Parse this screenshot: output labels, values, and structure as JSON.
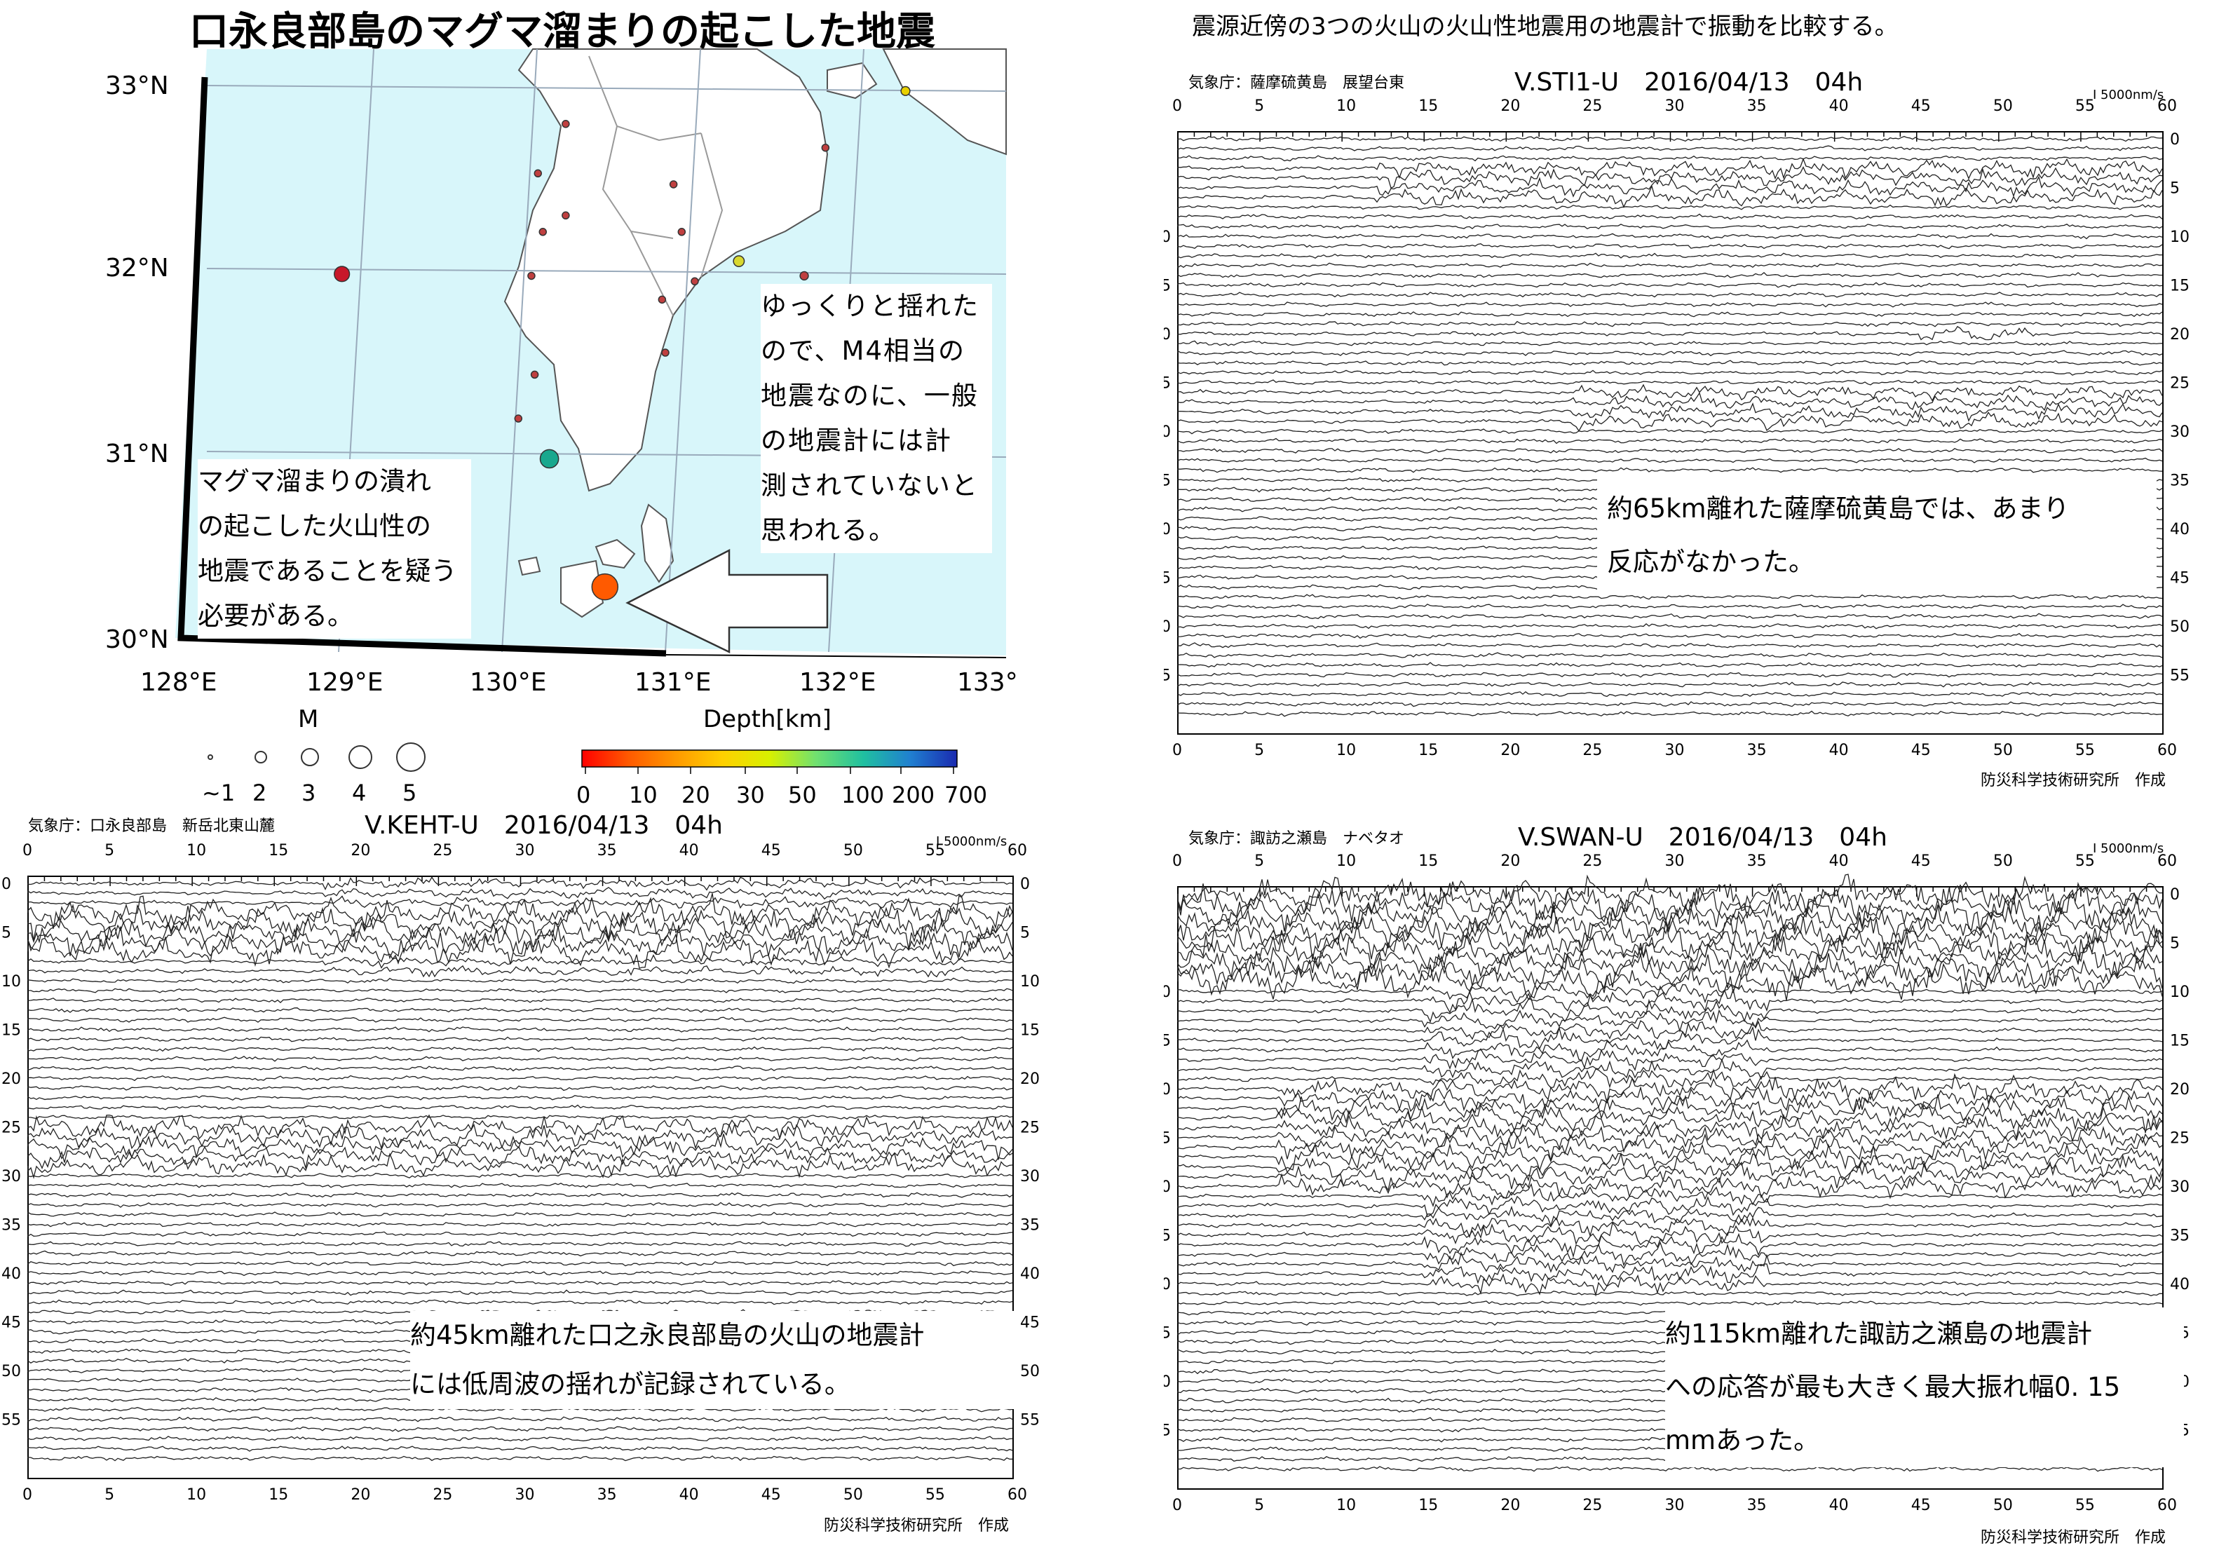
{
  "title": "口永良部島のマグマ溜まりの起こした地震",
  "compare_title": "震源近傍の3つの火山の火山性地震用の地震計で振動を比較する。",
  "map": {
    "lat_labels": [
      "33°N",
      "32°N",
      "31°N",
      "30°N"
    ],
    "lon_labels": [
      "128°E",
      "129°E",
      "130°E",
      "131°E",
      "132°E",
      "133°"
    ],
    "note_left": [
      "マグマ溜まりの潰れ",
      "の起こした火山性の",
      "地震であることを疑う",
      "必要がある。"
    ],
    "note_right": [
      "ゆっくりと揺れた",
      "ので、M4相当の",
      "地震なのに、一般",
      "の地震計には計",
      "測されていないと",
      "思われる。"
    ],
    "colors": {
      "sea": "#d8f6fa",
      "land": "#ffffff",
      "arrow": "#ffffff"
    },
    "events": [
      {
        "lon": 130.63,
        "lat": 30.26,
        "mag": 4.0,
        "color": "#ff5a00"
      },
      {
        "lon": 130.29,
        "lat": 30.96,
        "mag": 2.8,
        "color": "#19a88e"
      },
      {
        "lon": 129.02,
        "lat": 31.97,
        "mag": 2.3,
        "color": "#c8182a"
      },
      {
        "lon": 131.45,
        "lat": 32.04,
        "mag": 1.6,
        "color": "#d8d830"
      },
      {
        "lon": 131.85,
        "lat": 31.96,
        "mag": 1.2,
        "color": "#c04040"
      },
      {
        "lon": 131.18,
        "lat": 31.93,
        "mag": 1.0,
        "color": "#c04040"
      },
      {
        "lon": 130.98,
        "lat": 31.83,
        "mag": 1.0,
        "color": "#c04040"
      },
      {
        "lon": 131.1,
        "lat": 32.2,
        "mag": 1.0,
        "color": "#c04040"
      },
      {
        "lon": 131.05,
        "lat": 32.46,
        "mag": 1.0,
        "color": "#c04040"
      },
      {
        "lon": 130.39,
        "lat": 32.79,
        "mag": 1.0,
        "color": "#c04040"
      },
      {
        "lon": 130.22,
        "lat": 32.52,
        "mag": 1.0,
        "color": "#c04040"
      },
      {
        "lon": 130.39,
        "lat": 32.29,
        "mag": 1.0,
        "color": "#c04040"
      },
      {
        "lon": 130.25,
        "lat": 32.2,
        "mag": 1.0,
        "color": "#c04040"
      },
      {
        "lon": 130.18,
        "lat": 31.96,
        "mag": 1.0,
        "color": "#c04040"
      },
      {
        "lon": 131.0,
        "lat": 31.54,
        "mag": 1.0,
        "color": "#c04040"
      },
      {
        "lon": 130.2,
        "lat": 31.42,
        "mag": 1.0,
        "color": "#c04040"
      },
      {
        "lon": 130.1,
        "lat": 31.18,
        "mag": 1.0,
        "color": "#c04040"
      },
      {
        "lon": 131.98,
        "lat": 32.66,
        "mag": 1.0,
        "color": "#c04040"
      },
      {
        "lon": 132.47,
        "lat": 32.97,
        "mag": 1.3,
        "color": "#e8d000"
      }
    ]
  },
  "legend": {
    "m_title": "M",
    "m_labels": [
      "~1",
      "2",
      "3",
      "4",
      "5"
    ],
    "depth_title": "Depth[km]",
    "depth_labels": [
      "0",
      "10",
      "20",
      "30",
      "50",
      "100",
      "200",
      "700"
    ],
    "depth_colors": [
      "#ff0000",
      "#ff5a00",
      "#ff9900",
      "#ffd000",
      "#d8f000",
      "#70e070",
      "#20c0a0",
      "#2080d0",
      "#1a2ab0"
    ]
  },
  "panels": {
    "keht": {
      "header_left": "気象庁：口永良部島　新岳北東山麓",
      "code": "V.KEHT-U　2016/04/13　04h",
      "scale": "I 5000nm/s",
      "credit": "防災科学技術研究所　作成",
      "note": [
        "約45km離れた口之永良部島の火山の地震計",
        "には低周波の揺れが記録されている。"
      ]
    },
    "sti1": {
      "header_left": "気象庁：薩摩硫黄島　展望台東",
      "code": "V.STI1-U　2016/04/13　04h",
      "scale": "I 5000nm/s",
      "credit": "防災科学技術研究所　作成",
      "note": [
        "約65km離れた薩摩硫黄島では、あまり",
        "反応がなかった。"
      ]
    },
    "swan": {
      "header_left": "気象庁：諏訪之瀬島　ナベタオ",
      "code": "V.SWAN-U　2016/04/13　04h",
      "scale": "I 5000nm/s",
      "credit": "防災科学技術研究所　作成",
      "note": [
        "約115km離れた諏訪之瀬島の地震計",
        "への応答が最も大きく最大振れ幅0. 15",
        "mmあった。"
      ]
    },
    "top_ticks": [
      "0",
      "5",
      "10",
      "15",
      "20",
      "25",
      "30",
      "35",
      "40",
      "45",
      "50",
      "55",
      "60"
    ],
    "side_ticks": [
      "0",
      "5",
      "10",
      "15",
      "20",
      "25",
      "30",
      "35",
      "40",
      "45",
      "50",
      "55"
    ]
  }
}
